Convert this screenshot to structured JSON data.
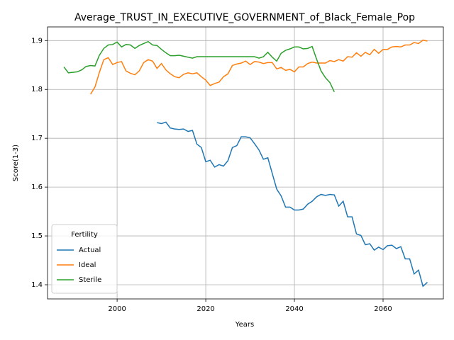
{
  "chart_data": {
    "type": "line",
    "title": "Average_TRUST_IN_EXECUTIVE_GOVERNMENT_of_Black_Female_Pop",
    "x_label": "Years",
    "y_label": "Score(1-3)",
    "legend_title": "Fertility",
    "legend_position": "lower left",
    "grid": true,
    "xlim": [
      1984.3,
      2073.6
    ],
    "ylim": [
      1.371,
      1.928
    ],
    "xticks": [
      2000,
      2020,
      2040,
      2060
    ],
    "yticks": [
      1.4,
      1.5,
      1.6,
      1.7,
      1.8,
      1.9
    ],
    "x": [
      1988,
      1989,
      1990,
      1991,
      1992,
      1993,
      1994,
      1995,
      1996,
      1997,
      1998,
      1999,
      2000,
      2001,
      2002,
      2003,
      2004,
      2005,
      2006,
      2007,
      2008,
      2009,
      2010,
      2011,
      2012,
      2013,
      2014,
      2015,
      2016,
      2017,
      2018,
      2019,
      2020,
      2021,
      2022,
      2023,
      2024,
      2025,
      2026,
      2027,
      2028,
      2029,
      2030,
      2031,
      2032,
      2033,
      2034,
      2035,
      2036,
      2037,
      2038,
      2039,
      2040,
      2041,
      2042,
      2043,
      2044,
      2045,
      2046,
      2047,
      2048,
      2049,
      2050,
      2051,
      2052,
      2053,
      2054,
      2055,
      2056,
      2057,
      2058,
      2059,
      2060,
      2061,
      2062,
      2063,
      2064,
      2065,
      2066,
      2067,
      2068,
      2069,
      2070
    ],
    "series": [
      {
        "name": "Actual",
        "color": "#1f77b4",
        "values": [
          null,
          null,
          null,
          null,
          null,
          null,
          null,
          null,
          null,
          null,
          null,
          null,
          null,
          null,
          null,
          null,
          null,
          null,
          null,
          null,
          null,
          1.732,
          1.73,
          1.733,
          1.721,
          1.719,
          1.718,
          1.719,
          1.714,
          1.716,
          1.688,
          1.681,
          1.652,
          1.655,
          1.641,
          1.646,
          1.643,
          1.654,
          1.681,
          1.685,
          1.703,
          1.703,
          1.701,
          1.689,
          1.676,
          1.657,
          1.66,
          1.628,
          1.596,
          1.582,
          1.559,
          1.559,
          1.553,
          1.553,
          1.555,
          1.565,
          1.571,
          1.58,
          1.585,
          1.583,
          1.585,
          1.584,
          1.561,
          1.571,
          1.539,
          1.539,
          1.504,
          1.501,
          1.482,
          1.484,
          1.471,
          1.477,
          1.472,
          1.48,
          1.481,
          1.474,
          1.478,
          1.453,
          1.453,
          1.422,
          1.43,
          1.397,
          1.405
        ]
      },
      {
        "name": "Ideal",
        "color": "#ff7f0e",
        "values": [
          null,
          null,
          null,
          null,
          null,
          null,
          1.79,
          1.805,
          1.835,
          1.861,
          1.865,
          1.851,
          1.855,
          1.857,
          1.838,
          1.833,
          1.83,
          1.838,
          1.855,
          1.861,
          1.858,
          1.843,
          1.853,
          1.84,
          1.832,
          1.826,
          1.824,
          1.831,
          1.834,
          1.832,
          1.834,
          1.826,
          1.819,
          1.808,
          1.812,
          1.815,
          1.826,
          1.832,
          1.849,
          1.852,
          1.854,
          1.858,
          1.851,
          1.857,
          1.856,
          1.853,
          1.855,
          1.855,
          1.842,
          1.845,
          1.839,
          1.841,
          1.836,
          1.846,
          1.846,
          1.853,
          1.856,
          1.854,
          1.854,
          1.854,
          1.859,
          1.857,
          1.861,
          1.858,
          1.867,
          1.866,
          1.875,
          1.868,
          1.876,
          1.871,
          1.882,
          1.874,
          1.882,
          1.882,
          1.887,
          1.888,
          1.887,
          1.891,
          1.891,
          1.896,
          1.894,
          1.901,
          1.899
        ]
      },
      {
        "name": "Sterile",
        "color": "#2ca02c",
        "values": [
          1.846,
          1.834,
          1.835,
          1.836,
          1.84,
          1.847,
          1.849,
          1.848,
          1.87,
          1.884,
          1.891,
          1.892,
          1.897,
          1.887,
          1.892,
          1.891,
          1.884,
          1.89,
          1.894,
          1.898,
          1.891,
          1.89,
          1.882,
          1.875,
          1.869,
          1.869,
          1.87,
          1.868,
          1.866,
          1.864,
          1.867,
          1.867,
          1.867,
          1.867,
          1.867,
          1.867,
          1.867,
          1.867,
          1.867,
          1.867,
          1.867,
          1.867,
          1.867,
          1.867,
          1.864,
          1.867,
          1.876,
          1.866,
          1.858,
          1.874,
          1.88,
          1.883,
          1.887,
          1.887,
          1.883,
          1.884,
          1.888,
          1.862,
          1.838,
          1.824,
          1.814,
          1.795,
          null,
          null,
          null,
          null,
          null,
          null,
          null,
          null,
          null,
          null,
          null,
          null,
          null,
          null,
          null,
          null,
          null,
          null,
          null,
          null,
          null
        ]
      }
    ]
  }
}
